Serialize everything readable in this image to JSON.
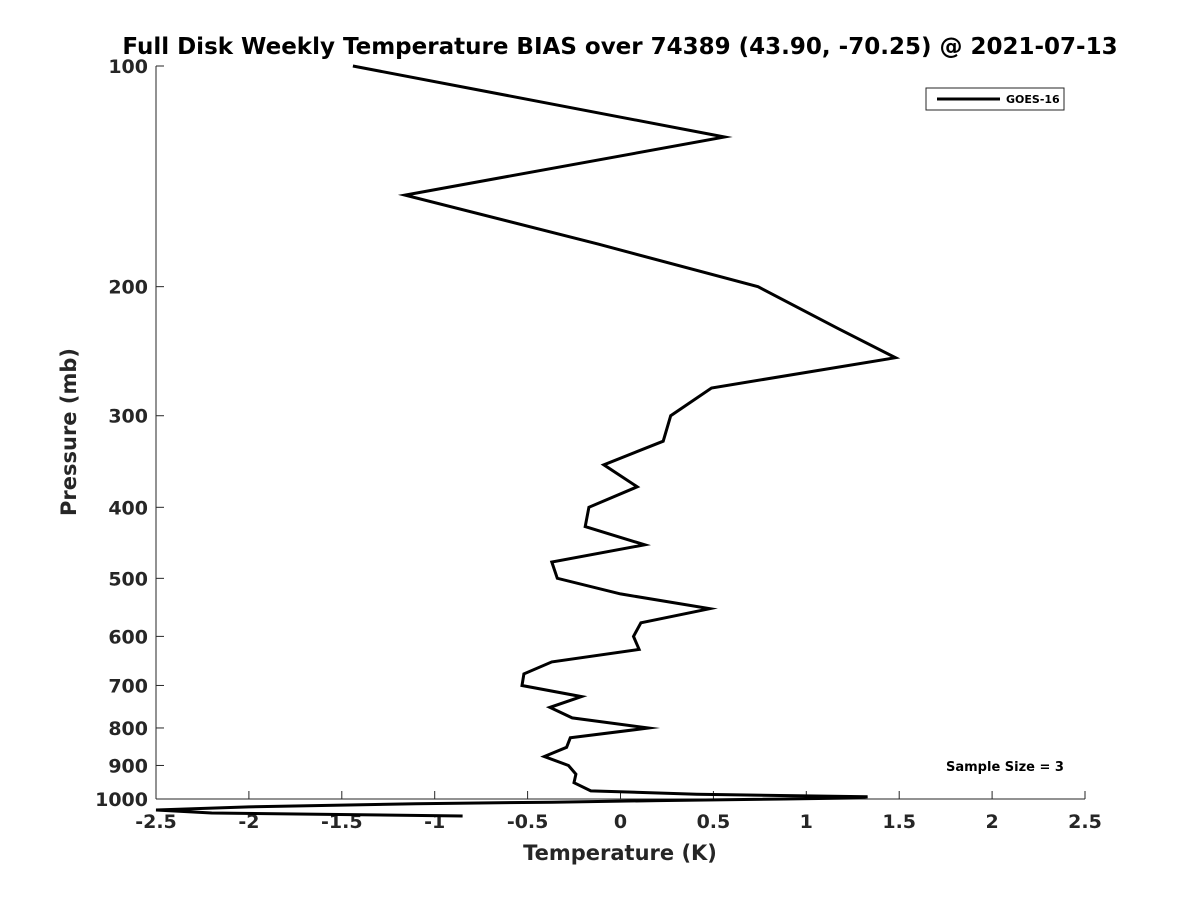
{
  "chart_data": {
    "type": "line",
    "title": "Full Disk Weekly Temperature BIAS over 74389 (43.90, -70.25) @ 2021-07-13",
    "xlabel": "Temperature (K)",
    "ylabel": "Pressure (mb)",
    "xlim": [
      -2.5,
      2.5
    ],
    "ylim": [
      1000,
      100
    ],
    "y_scale": "log",
    "y_reversed": true,
    "grid": false,
    "legend_position": "top-right",
    "x_ticks": [
      -2.5,
      -2,
      -1.5,
      -1,
      -0.5,
      0,
      0.5,
      1,
      1.5,
      2,
      2.5
    ],
    "x_tick_labels": [
      "-2.5",
      "-2",
      "-1.5",
      "-1",
      "-0.5",
      "0",
      "0.5",
      "1",
      "1.5",
      "2",
      "2.5"
    ],
    "y_ticks": [
      100,
      200,
      300,
      400,
      500,
      600,
      700,
      800,
      900,
      1000
    ],
    "y_tick_labels": [
      "100",
      "200",
      "300",
      "400",
      "500",
      "600",
      "700",
      "800",
      "900",
      "1000"
    ],
    "series": [
      {
        "name": "GOES-16",
        "color": "#000000",
        "points": [
          {
            "x": -1.44,
            "y": 100
          },
          {
            "x": 0.56,
            "y": 125
          },
          {
            "x": -1.16,
            "y": 150
          },
          {
            "x": -0.12,
            "y": 175
          },
          {
            "x": 0.74,
            "y": 200
          },
          {
            "x": 1.17,
            "y": 228
          },
          {
            "x": 1.48,
            "y": 250
          },
          {
            "x": 0.49,
            "y": 275
          },
          {
            "x": 0.27,
            "y": 300
          },
          {
            "x": 0.23,
            "y": 325
          },
          {
            "x": -0.09,
            "y": 350
          },
          {
            "x": 0.09,
            "y": 375
          },
          {
            "x": -0.17,
            "y": 400
          },
          {
            "x": -0.19,
            "y": 425
          },
          {
            "x": 0.13,
            "y": 450
          },
          {
            "x": -0.37,
            "y": 475
          },
          {
            "x": -0.34,
            "y": 500
          },
          {
            "x": 0,
            "y": 525
          },
          {
            "x": 0.48,
            "y": 550
          },
          {
            "x": 0.11,
            "y": 575
          },
          {
            "x": 0.07,
            "y": 600
          },
          {
            "x": 0.1,
            "y": 625
          },
          {
            "x": -0.37,
            "y": 650
          },
          {
            "x": -0.52,
            "y": 675
          },
          {
            "x": -0.53,
            "y": 700
          },
          {
            "x": -0.21,
            "y": 725
          },
          {
            "x": -0.38,
            "y": 750
          },
          {
            "x": -0.26,
            "y": 775
          },
          {
            "x": 0.15,
            "y": 800
          },
          {
            "x": -0.27,
            "y": 825
          },
          {
            "x": -0.29,
            "y": 850
          },
          {
            "x": -0.41,
            "y": 875
          },
          {
            "x": -0.28,
            "y": 900
          },
          {
            "x": -0.24,
            "y": 925
          },
          {
            "x": -0.25,
            "y": 950
          },
          {
            "x": -0.16,
            "y": 975
          },
          {
            "x": 0.41,
            "y": 985
          },
          {
            "x": 1.33,
            "y": 993
          },
          {
            "x": 1.25,
            "y": 997
          },
          {
            "x": 0.88,
            "y": 1000
          },
          {
            "x": 0.2,
            "y": 1005
          },
          {
            "x": -0.37,
            "y": 1010
          },
          {
            "x": -1.1,
            "y": 1015
          },
          {
            "x": -2.0,
            "y": 1025
          },
          {
            "x": -2.5,
            "y": 1035
          },
          {
            "x": -2.2,
            "y": 1045
          },
          {
            "x": -0.85,
            "y": 1055
          }
        ]
      }
    ],
    "annotation": "Sample Size = 3"
  }
}
